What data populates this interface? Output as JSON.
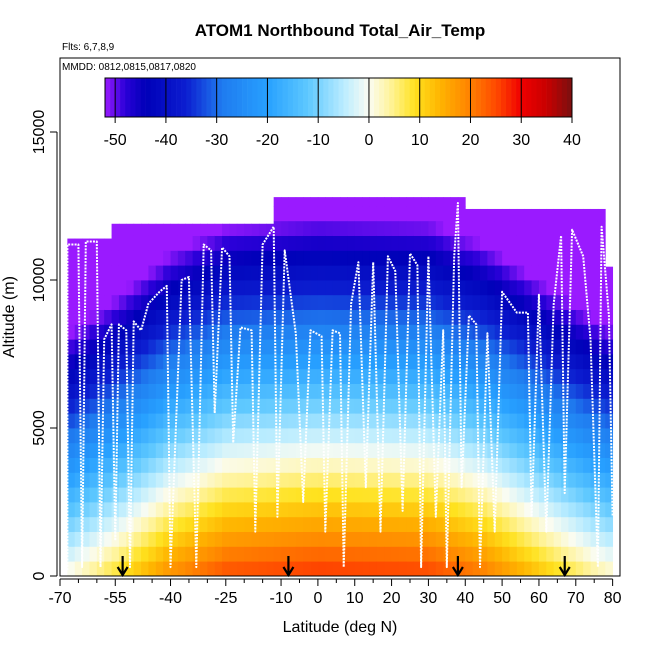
{
  "chart_data": {
    "type": "heatmap",
    "title": "ATOM1 Northbound Total_Air_Temp",
    "notes": [
      "Flts: 6,7,8,9",
      "MMDD: 0812,0815,0817,0820"
    ],
    "xlabel": "Latitude (deg N)",
    "ylabel": "Altitude (m)",
    "xlim": [
      -70,
      82
    ],
    "ylim": [
      0,
      17500
    ],
    "x_ticks": [
      -70,
      -55,
      -40,
      -25,
      -10,
      0,
      10,
      20,
      30,
      40,
      50,
      60,
      70,
      80
    ],
    "x_tick_labels": [
      "-70",
      "-55",
      "-40",
      "-25",
      "-10",
      "0",
      "10",
      "20",
      "30",
      "40",
      "50",
      "60",
      "70",
      "80"
    ],
    "x_minor_ticks": [
      -65,
      -60,
      -50,
      -45,
      -35,
      -30,
      -20,
      -15,
      -5,
      5,
      15,
      25,
      35,
      45,
      55,
      65,
      75
    ],
    "y_ticks": [
      0,
      5000,
      10000,
      15000
    ],
    "y_tick_labels": [
      "0",
      "5000",
      "10000",
      "15000"
    ],
    "colorbar": {
      "min": -52,
      "max": 40,
      "ticks": [
        -50,
        -40,
        -30,
        -20,
        -10,
        0,
        10,
        20,
        30,
        40
      ],
      "tick_labels": [
        "-50",
        "-40",
        "-30",
        "-20",
        "-10",
        "0",
        "10",
        "20",
        "30",
        "40"
      ],
      "stops": [
        {
          "v": -52,
          "c": "#9a1aff"
        },
        {
          "v": -48,
          "c": "#2a00d8"
        },
        {
          "v": -44,
          "c": "#0000b8"
        },
        {
          "v": -36,
          "c": "#0c1ed0"
        },
        {
          "v": -29,
          "c": "#1f7bef"
        },
        {
          "v": -20,
          "c": "#27a0ff"
        },
        {
          "v": -12,
          "c": "#5ec8ff"
        },
        {
          "v": -5,
          "c": "#b9ecff"
        },
        {
          "v": 0,
          "c": "#fafcf2"
        },
        {
          "v": 4,
          "c": "#fff4a0"
        },
        {
          "v": 9,
          "c": "#ffe21f"
        },
        {
          "v": 14,
          "c": "#ffb400"
        },
        {
          "v": 19,
          "c": "#ff8a00"
        },
        {
          "v": 25,
          "c": "#ff4a00"
        },
        {
          "v": 30,
          "c": "#f00000"
        },
        {
          "v": 35,
          "c": "#c80000"
        },
        {
          "v": 40,
          "c": "#7a1010"
        }
      ]
    },
    "profile_model": {
      "surface_temp_equator": 27,
      "lapse_per_km": 6.5,
      "latitude_cooling": [
        {
          "lat": -70,
          "drop": 27
        },
        {
          "lat": -55,
          "drop": 18
        },
        {
          "lat": -40,
          "drop": 8
        },
        {
          "lat": -25,
          "drop": 2
        },
        {
          "lat": 0,
          "drop": 0
        },
        {
          "lat": 30,
          "drop": 1
        },
        {
          "lat": 45,
          "drop": 6
        },
        {
          "lat": 60,
          "drop": 14
        },
        {
          "lat": 75,
          "drop": 22
        },
        {
          "lat": 82,
          "drop": 25
        }
      ]
    },
    "data_ceiling": [
      {
        "lat": -68,
        "alt": 11400
      },
      {
        "lat": -57,
        "alt": 11400
      },
      {
        "lat": -56,
        "alt": 11900
      },
      {
        "lat": -13,
        "alt": 11900
      },
      {
        "lat": -12,
        "alt": 12800
      },
      {
        "lat": 40,
        "alt": 12800
      },
      {
        "lat": 41,
        "alt": 12400
      },
      {
        "lat": 77,
        "alt": 12400
      },
      {
        "lat": 78,
        "alt": 11400
      },
      {
        "lat": 80,
        "alt": 9500
      }
    ],
    "flight_track": [
      [
        -68,
        200
      ],
      [
        -68,
        11200
      ],
      [
        -65,
        11200
      ],
      [
        -64,
        300
      ],
      [
        -63,
        11300
      ],
      [
        -60,
        11300
      ],
      [
        -59,
        300
      ],
      [
        -58,
        8000
      ],
      [
        -56,
        8500
      ],
      [
        -55,
        1200
      ],
      [
        -54,
        8500
      ],
      [
        -52,
        8300
      ],
      [
        -51,
        300
      ],
      [
        -50,
        8600
      ],
      [
        -48,
        8300
      ],
      [
        -46,
        9200
      ],
      [
        -43,
        9600
      ],
      [
        -41,
        9800
      ],
      [
        -40,
        300
      ],
      [
        -37,
        10000
      ],
      [
        -35,
        10100
      ],
      [
        -33,
        300
      ],
      [
        -31,
        11200
      ],
      [
        -29,
        11000
      ],
      [
        -28,
        5500
      ],
      [
        -26,
        11100
      ],
      [
        -24,
        10800
      ],
      [
        -23,
        4500
      ],
      [
        -21,
        8400
      ],
      [
        -18,
        8300
      ],
      [
        -17,
        1500
      ],
      [
        -15,
        11200
      ],
      [
        -12,
        11800
      ],
      [
        -11,
        2000
      ],
      [
        -9,
        11000
      ],
      [
        -6,
        8200
      ],
      [
        -4,
        2500
      ],
      [
        -2,
        8300
      ],
      [
        1,
        8100
      ],
      [
        2,
        1500
      ],
      [
        4,
        8300
      ],
      [
        6,
        8200
      ],
      [
        7,
        300
      ],
      [
        9,
        9200
      ],
      [
        11,
        10600
      ],
      [
        13,
        3000
      ],
      [
        15,
        10600
      ],
      [
        17,
        1500
      ],
      [
        19,
        10800
      ],
      [
        21,
        10300
      ],
      [
        23,
        2200
      ],
      [
        25,
        10900
      ],
      [
        27,
        10500
      ],
      [
        28,
        300
      ],
      [
        30,
        10800
      ],
      [
        32,
        2000
      ],
      [
        34,
        8300
      ],
      [
        35,
        300
      ],
      [
        37,
        10800
      ],
      [
        38,
        12600
      ],
      [
        39,
        3000
      ],
      [
        41,
        8800
      ],
      [
        43,
        8500
      ],
      [
        44,
        300
      ],
      [
        46,
        8200
      ],
      [
        48,
        1500
      ],
      [
        50,
        9600
      ],
      [
        54,
        8900
      ],
      [
        57,
        8900
      ],
      [
        58,
        2000
      ],
      [
        60,
        9500
      ],
      [
        62,
        1500
      ],
      [
        64,
        9200
      ],
      [
        66,
        11500
      ],
      [
        67,
        2800
      ],
      [
        69,
        11700
      ],
      [
        72,
        10800
      ],
      [
        74,
        8000
      ],
      [
        76,
        300
      ],
      [
        77,
        11800
      ],
      [
        79,
        8800
      ],
      [
        80,
        2000
      ]
    ],
    "markers": [
      {
        "lat": -53,
        "label": ""
      },
      {
        "lat": -8,
        "label": ""
      },
      {
        "lat": 38,
        "label": ""
      },
      {
        "lat": 67,
        "label": ""
      }
    ]
  }
}
